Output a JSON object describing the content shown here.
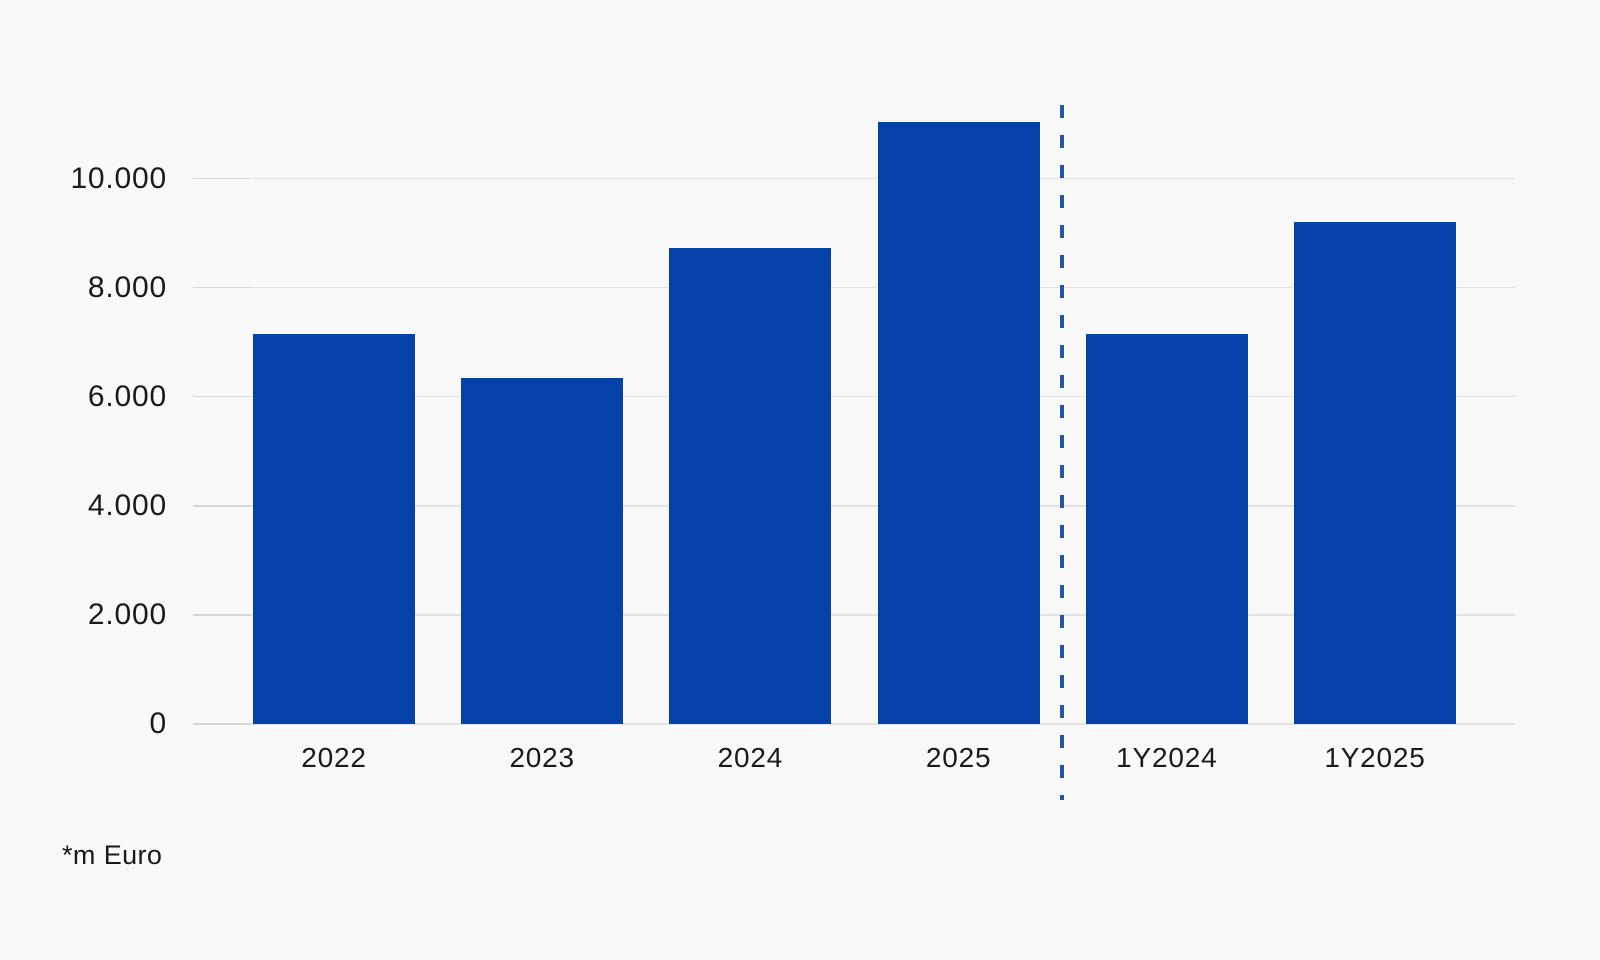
{
  "chart_data": {
    "type": "bar",
    "categories": [
      "2022",
      "2023",
      "2024",
      "2025",
      "1Y2024",
      "1Y2025"
    ],
    "values": [
      7150,
      6340,
      8730,
      11040,
      7150,
      9200
    ],
    "title": "",
    "xlabel": "",
    "ylabel": "",
    "ylim": [
      0,
      11500
    ],
    "yticks": [
      0,
      2000,
      4000,
      6000,
      8000,
      10000
    ],
    "ytick_labels": [
      "0",
      "2.000",
      "4.000",
      "6.000",
      "8.000",
      "10.000"
    ],
    "grid": true,
    "legend": false,
    "footnote": "*m Euro",
    "separator_after_index": 3,
    "colors": {
      "bar": "#0441a8",
      "separator": "#2456a6",
      "gridline": "#e2e2e2",
      "background": "#f9f9f9",
      "text": "#1a1a1a"
    }
  }
}
